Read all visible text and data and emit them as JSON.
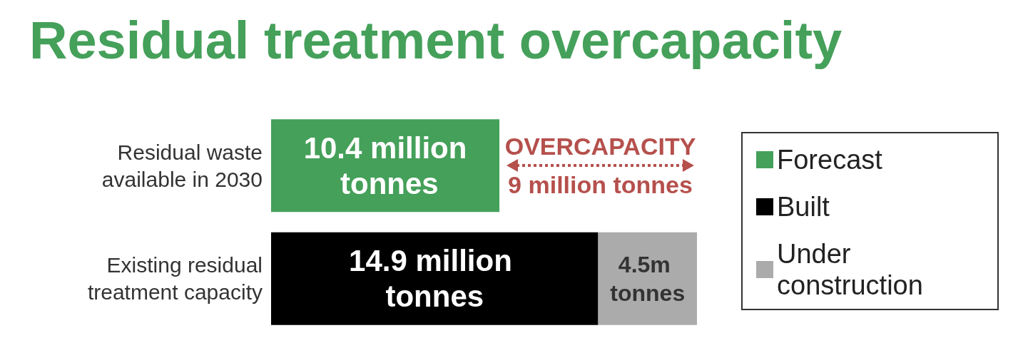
{
  "chart_data": {
    "type": "bar",
    "orientation": "horizontal",
    "stacked": true,
    "title": "Residual treatment overcapacity",
    "categories": [
      "Residual waste\navailable in 2030",
      "Existing residual\ntreatment capacity"
    ],
    "series": [
      {
        "name": "Forecast",
        "color": "#45a05a",
        "values": [
          10.4,
          null
        ],
        "value_labels": [
          "10.4 million tonnes",
          null
        ]
      },
      {
        "name": "Built",
        "color": "#000000",
        "values": [
          null,
          14.9
        ],
        "value_labels": [
          null,
          "14.9 million tonnes"
        ]
      },
      {
        "name": "Under construction",
        "color": "#ababab",
        "values": [
          null,
          4.5
        ],
        "value_labels": [
          null,
          "4.5m tonnes"
        ]
      }
    ],
    "annotations": [
      "OVERCAPACITY",
      "9 million tonnes"
    ],
    "legend": "right"
  }
}
